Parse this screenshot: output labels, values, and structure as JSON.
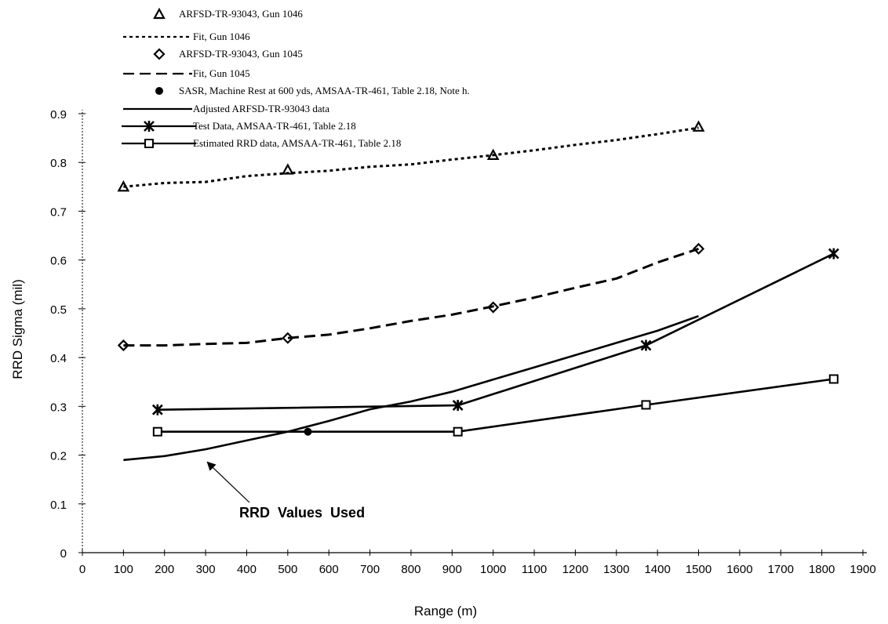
{
  "chart_data": {
    "type": "line",
    "title": "",
    "xlabel": "Range (m)",
    "ylabel": "RRD Sigma (mil)",
    "xlim": [
      0,
      1900
    ],
    "ylim": [
      0,
      0.9
    ],
    "x_ticks": [
      0,
      100,
      200,
      300,
      400,
      500,
      600,
      700,
      800,
      900,
      1000,
      1100,
      1200,
      1300,
      1400,
      1500,
      1600,
      1700,
      1800,
      1900
    ],
    "y_ticks": [
      0,
      0.1,
      0.2,
      0.3,
      0.4,
      0.5,
      0.6,
      0.7,
      0.8,
      0.9
    ],
    "grid": false,
    "legend_position": "top-left",
    "series": [
      {
        "name": "ARFSD-TR-93043, Gun 1046",
        "style": "triangle-marker",
        "points": [
          [
            100,
            0.75
          ],
          [
            500,
            0.785
          ],
          [
            1000,
            0.815
          ],
          [
            1500,
            0.873
          ]
        ]
      },
      {
        "name": "Fit, Gun 1046",
        "style": "dotted",
        "points": [
          [
            100,
            0.75
          ],
          [
            200,
            0.758
          ],
          [
            300,
            0.76
          ],
          [
            400,
            0.772
          ],
          [
            500,
            0.778
          ],
          [
            600,
            0.783
          ],
          [
            700,
            0.791
          ],
          [
            800,
            0.796
          ],
          [
            900,
            0.806
          ],
          [
            1000,
            0.815
          ],
          [
            1100,
            0.825
          ],
          [
            1200,
            0.836
          ],
          [
            1300,
            0.846
          ],
          [
            1400,
            0.858
          ],
          [
            1500,
            0.871
          ]
        ]
      },
      {
        "name": "ARFSD-TR-93043, Gun 1045",
        "style": "diamond-marker",
        "points": [
          [
            100,
            0.425
          ],
          [
            500,
            0.44
          ],
          [
            1000,
            0.503
          ],
          [
            1500,
            0.623
          ]
        ]
      },
      {
        "name": "Fit, Gun 1045",
        "style": "dashed",
        "points": [
          [
            100,
            0.425
          ],
          [
            200,
            0.425
          ],
          [
            300,
            0.428
          ],
          [
            400,
            0.43
          ],
          [
            500,
            0.44
          ],
          [
            600,
            0.447
          ],
          [
            700,
            0.46
          ],
          [
            800,
            0.475
          ],
          [
            900,
            0.488
          ],
          [
            1000,
            0.505
          ],
          [
            1100,
            0.523
          ],
          [
            1200,
            0.543
          ],
          [
            1300,
            0.562
          ],
          [
            1400,
            0.595
          ],
          [
            1500,
            0.623
          ]
        ]
      },
      {
        "name": "SASR, Machine Rest at 600 yds, AMSAA-TR-461, Table 2.18, Note h.",
        "style": "filled-circle",
        "points": [
          [
            549,
            0.248
          ]
        ]
      },
      {
        "name": "Adjusted ARFSD-TR-93043 data",
        "style": "solid",
        "points": [
          [
            100,
            0.19
          ],
          [
            200,
            0.198
          ],
          [
            300,
            0.212
          ],
          [
            400,
            0.23
          ],
          [
            500,
            0.248
          ],
          [
            600,
            0.27
          ],
          [
            700,
            0.294
          ],
          [
            800,
            0.31
          ],
          [
            900,
            0.33
          ],
          [
            1000,
            0.355
          ],
          [
            1100,
            0.38
          ],
          [
            1200,
            0.405
          ],
          [
            1300,
            0.43
          ],
          [
            1400,
            0.455
          ],
          [
            1500,
            0.485
          ]
        ]
      },
      {
        "name": "Test Data, AMSAA-TR-461, Table 2.18",
        "style": "star-marker",
        "points": [
          [
            183,
            0.293
          ],
          [
            914,
            0.302
          ],
          [
            1372,
            0.425
          ],
          [
            1829,
            0.613
          ]
        ]
      },
      {
        "name": "Estimated RRD data, AMSAA-TR-461, Table 2.18",
        "style": "square-marker",
        "points": [
          [
            183,
            0.248
          ],
          [
            914,
            0.248
          ],
          [
            1372,
            0.303
          ],
          [
            1829,
            0.356
          ]
        ]
      }
    ],
    "annotations": [
      {
        "text": "RRD  Values  Used",
        "arrow_to": [
          360,
          0.195
        ]
      }
    ]
  }
}
